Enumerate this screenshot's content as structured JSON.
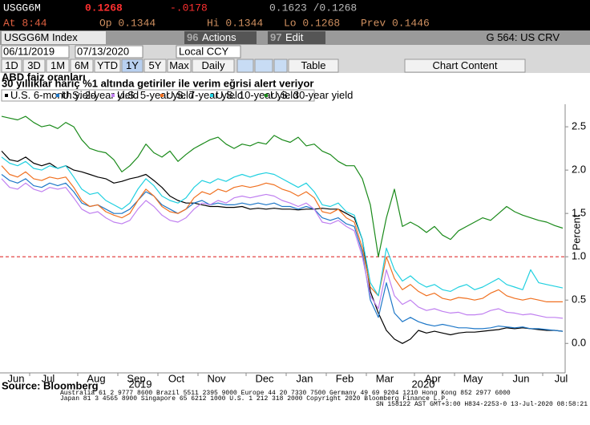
{
  "header": {
    "ticker": "USGG6M",
    "last": "0.1268",
    "change": "-.0178",
    "range": "0.1623 /0.1268",
    "at": "At 8:44",
    "open": "Op 0.1344",
    "high": "Hi 0.1344",
    "low": "Lo 0.1268",
    "prev": "Prev 0.1446"
  },
  "toolbar": {
    "security": "USGG6M Index",
    "actions_code": "96",
    "actions": "Actions",
    "edit_code": "97",
    "edit": "Edit",
    "function": "G 564: US CRV"
  },
  "date_bar": {
    "start": "06/11/2019",
    "end": "07/13/2020",
    "currency": "Local CCY"
  },
  "buttons": [
    "1D",
    "3D",
    "1M",
    "6M",
    "YTD",
    "1Y",
    "5Y",
    "Max",
    "Daily",
    "Table",
    "Chart Content"
  ],
  "footer": {
    "source": "Source: Bloomberg",
    "contacts_1": "Australia 61 2 9777 8600 Brazil 5511 2395 9000 Europe 44 20 7330 7500 Germany 49 69 9204 1210 Hong Kong 852 2977 6000",
    "contacts_2": "Japan 81 3 4565 8900 Singapore 65 6212 1000 U.S. 1 212 318 2000 Copyright 2020 Bloomberg Finance L.P.",
    "session": "SN 158122 AST GMT+3:00 H834-2253-0 13-Jul-2020 08:58:21"
  },
  "chart_data": {
    "type": "line",
    "title": "ABD faiz oranları",
    "subtitle": "30 yıllıklar hariç %1 altında getiriler ile verim eğrisi alert veriyor",
    "y_label": "Percent",
    "categories": [
      null,
      null,
      "Jun",
      null,
      null,
      null,
      "Jul",
      null,
      null,
      null,
      null,
      null,
      "Aug",
      null,
      null,
      null,
      null,
      "Sep",
      null,
      null,
      null,
      null,
      "Oct",
      null,
      null,
      null,
      null,
      "Nov",
      null,
      null,
      null,
      null,
      null,
      "Dec",
      null,
      null,
      null,
      null,
      "Jan",
      null,
      null,
      null,
      null,
      "Feb",
      null,
      null,
      null,
      null,
      "Mar",
      null,
      null,
      null,
      null,
      null,
      "Apr",
      null,
      null,
      null,
      null,
      "May",
      null,
      null,
      null,
      null,
      null,
      "Jun",
      null,
      null,
      null,
      null,
      "Jul"
    ],
    "year_labels": [
      "2019",
      "2020"
    ],
    "ylim": [
      -0.34,
      2.76
    ],
    "yticks": [
      {
        "value": 0,
        "label": "0.0"
      },
      0.5,
      {
        "value": 1,
        "label": "1.0"
      },
      1.5,
      {
        "value": 2,
        "label": "2.0"
      },
      2.5
    ],
    "grid": false,
    "reference_line": 1,
    "reference_color": "#e03030",
    "series": [
      {
        "name": "U.S. 6-month yield",
        "color": "#000000",
        "values": [
          2.22,
          2.12,
          2.1,
          2.15,
          2.08,
          2.05,
          2.08,
          2.02,
          2.05,
          2.0,
          1.98,
          1.95,
          1.92,
          1.9,
          1.85,
          1.87,
          1.9,
          1.92,
          1.95,
          1.88,
          1.8,
          1.7,
          1.65,
          1.62,
          1.62,
          1.6,
          1.58,
          1.58,
          1.57,
          1.57,
          1.58,
          1.55,
          1.56,
          1.55,
          1.56,
          1.55,
          1.55,
          1.54,
          1.55,
          1.55,
          1.56,
          1.55,
          1.55,
          1.5,
          1.45,
          1.2,
          0.6,
          0.35,
          0.15,
          0.05,
          0.0,
          0.05,
          0.15,
          0.12,
          0.14,
          0.12,
          0.1,
          0.12,
          0.13,
          0.13,
          0.14,
          0.15,
          0.16,
          0.18,
          0.17,
          0.18,
          0.17,
          0.16,
          0.15,
          0.15,
          0.14
        ]
      },
      {
        "name": "U.S. 2-year yield",
        "color": "#1f78c8",
        "values": [
          1.95,
          1.88,
          1.85,
          1.9,
          1.82,
          1.8,
          1.85,
          1.82,
          1.85,
          1.75,
          1.62,
          1.58,
          1.6,
          1.55,
          1.5,
          1.5,
          1.55,
          1.65,
          1.75,
          1.7,
          1.6,
          1.55,
          1.5,
          1.55,
          1.62,
          1.65,
          1.6,
          1.62,
          1.6,
          1.6,
          1.62,
          1.6,
          1.62,
          1.6,
          1.62,
          1.58,
          1.58,
          1.55,
          1.58,
          1.55,
          1.45,
          1.42,
          1.45,
          1.38,
          1.35,
          1.05,
          0.5,
          0.3,
          0.7,
          0.35,
          0.25,
          0.3,
          0.25,
          0.22,
          0.2,
          0.22,
          0.2,
          0.18,
          0.18,
          0.17,
          0.17,
          0.18,
          0.2,
          0.19,
          0.18,
          0.19,
          0.17,
          0.17,
          0.16,
          0.15,
          0.14
        ]
      },
      {
        "name": "U.S. 5-year yield",
        "color": "#c080f0",
        "values": [
          1.9,
          1.8,
          1.78,
          1.85,
          1.78,
          1.75,
          1.8,
          1.78,
          1.8,
          1.68,
          1.55,
          1.5,
          1.52,
          1.45,
          1.4,
          1.38,
          1.42,
          1.55,
          1.65,
          1.58,
          1.48,
          1.42,
          1.4,
          1.45,
          1.55,
          1.62,
          1.6,
          1.65,
          1.62,
          1.68,
          1.7,
          1.68,
          1.7,
          1.72,
          1.7,
          1.65,
          1.62,
          1.58,
          1.62,
          1.55,
          1.4,
          1.38,
          1.42,
          1.35,
          1.3,
          1.0,
          0.55,
          0.4,
          0.85,
          0.55,
          0.45,
          0.5,
          0.42,
          0.38,
          0.4,
          0.37,
          0.35,
          0.36,
          0.33,
          0.33,
          0.34,
          0.38,
          0.4,
          0.36,
          0.35,
          0.33,
          0.34,
          0.32,
          0.3,
          0.3,
          0.29
        ]
      },
      {
        "name": "U.S. 7-year yield",
        "color": "#f07020",
        "values": [
          2.05,
          1.95,
          1.92,
          1.98,
          1.9,
          1.88,
          1.92,
          1.9,
          1.92,
          1.8,
          1.65,
          1.58,
          1.6,
          1.52,
          1.48,
          1.45,
          1.5,
          1.65,
          1.78,
          1.7,
          1.58,
          1.52,
          1.5,
          1.55,
          1.68,
          1.75,
          1.72,
          1.78,
          1.75,
          1.8,
          1.82,
          1.8,
          1.82,
          1.85,
          1.83,
          1.78,
          1.75,
          1.7,
          1.75,
          1.68,
          1.52,
          1.5,
          1.55,
          1.45,
          1.4,
          1.1,
          0.65,
          0.55,
          1.0,
          0.75,
          0.62,
          0.68,
          0.6,
          0.55,
          0.58,
          0.52,
          0.5,
          0.53,
          0.52,
          0.5,
          0.52,
          0.58,
          0.62,
          0.55,
          0.52,
          0.5,
          0.52,
          0.5,
          0.48,
          0.48,
          0.48
        ]
      },
      {
        "name": "U.S. 10-year yield",
        "color": "#20d0e0",
        "values": [
          2.15,
          2.08,
          2.05,
          2.1,
          2.02,
          2.0,
          2.05,
          2.02,
          2.05,
          1.92,
          1.78,
          1.72,
          1.74,
          1.65,
          1.6,
          1.55,
          1.62,
          1.78,
          1.9,
          1.82,
          1.7,
          1.65,
          1.62,
          1.68,
          1.8,
          1.88,
          1.85,
          1.9,
          1.87,
          1.92,
          1.95,
          1.92,
          1.95,
          1.97,
          1.95,
          1.9,
          1.85,
          1.8,
          1.85,
          1.75,
          1.6,
          1.58,
          1.62,
          1.52,
          1.48,
          1.2,
          0.7,
          0.55,
          1.1,
          0.85,
          0.72,
          0.78,
          0.7,
          0.65,
          0.68,
          0.62,
          0.6,
          0.65,
          0.68,
          0.62,
          0.65,
          0.7,
          0.75,
          0.68,
          0.65,
          0.62,
          0.85,
          0.7,
          0.68,
          0.66,
          0.64
        ]
      },
      {
        "name": "U.S. 30-year yield",
        "color": "#1a8a1a",
        "values": [
          2.62,
          2.6,
          2.58,
          2.62,
          2.55,
          2.5,
          2.52,
          2.48,
          2.55,
          2.5,
          2.35,
          2.25,
          2.22,
          2.2,
          2.12,
          1.98,
          2.05,
          2.15,
          2.3,
          2.2,
          2.15,
          2.22,
          2.1,
          2.18,
          2.25,
          2.3,
          2.35,
          2.38,
          2.3,
          2.25,
          2.3,
          2.28,
          2.32,
          2.3,
          2.4,
          2.35,
          2.32,
          2.38,
          2.28,
          2.3,
          2.22,
          2.18,
          2.1,
          2.05,
          2.05,
          1.9,
          1.6,
          1.0,
          1.45,
          1.78,
          1.35,
          1.4,
          1.35,
          1.28,
          1.35,
          1.25,
          1.2,
          1.3,
          1.35,
          1.4,
          1.45,
          1.42,
          1.5,
          1.58,
          1.52,
          1.48,
          1.45,
          1.42,
          1.4,
          1.36,
          1.33
        ]
      }
    ]
  }
}
